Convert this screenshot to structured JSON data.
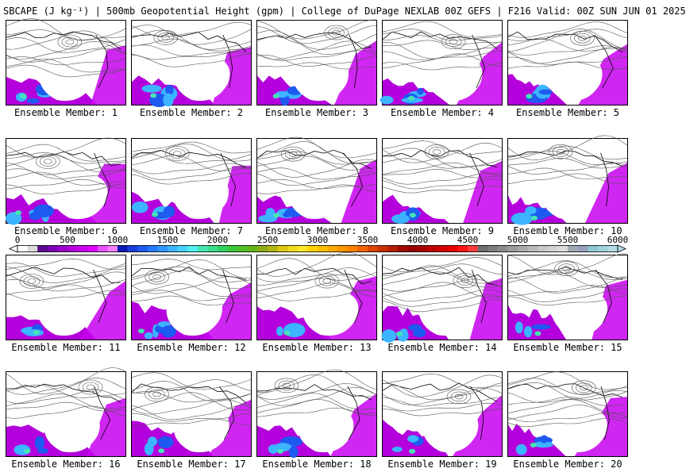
{
  "header": {
    "title": "SBCAPE (J kg⁻¹) | 500mb Geopotential Height (gpm) | College of DuPage NEXLAB 00Z GEFS | F216 Valid: 00Z SUN JUN 01 2025"
  },
  "panels": [
    {
      "label": "Ensemble Member: 1"
    },
    {
      "label": "Ensemble Member: 2"
    },
    {
      "label": "Ensemble Member: 3"
    },
    {
      "label": "Ensemble Member: 4"
    },
    {
      "label": "Ensemble Member: 5"
    },
    {
      "label": "Ensemble Member: 6"
    },
    {
      "label": "Ensemble Member: 7"
    },
    {
      "label": "Ensemble Member: 8"
    },
    {
      "label": "Ensemble Member: 9"
    },
    {
      "label": "Ensemble Member: 10"
    },
    {
      "label": "Ensemble Member: 11"
    },
    {
      "label": "Ensemble Member: 12"
    },
    {
      "label": "Ensemble Member: 13"
    },
    {
      "label": "Ensemble Member: 14"
    },
    {
      "label": "Ensemble Member: 15"
    },
    {
      "label": "Ensemble Member: 16"
    },
    {
      "label": "Ensemble Member: 17"
    },
    {
      "label": "Ensemble Member: 18"
    },
    {
      "label": "Ensemble Member: 19"
    },
    {
      "label": "Ensemble Member: 20"
    }
  ],
  "colorbar": {
    "ticks": [
      "0",
      "500",
      "1000",
      "1500",
      "2000",
      "2500",
      "3000",
      "3500",
      "4000",
      "4500",
      "5000",
      "5500",
      "6000"
    ],
    "colors": [
      "#ffffff",
      "#dcdcdc",
      "#5a0a8c",
      "#7a00b4",
      "#9a00c8",
      "#b400dc",
      "#c800f0",
      "#dc00ff",
      "#e650ff",
      "#f080ff",
      "#0a1ab4",
      "#1a3cdc",
      "#1e5af0",
      "#2878ff",
      "#3296ff",
      "#3cb4ff",
      "#46d2ff",
      "#50f0f0",
      "#46e6b4",
      "#3cdc8c",
      "#32d264",
      "#3cc83c",
      "#50be28",
      "#64b41e",
      "#8caa14",
      "#b4b414",
      "#dcc814",
      "#f0dc1e",
      "#ffe628",
      "#ffd200",
      "#ffbe00",
      "#ffaa00",
      "#ff9600",
      "#ff8200",
      "#f06400",
      "#dc4600",
      "#c83200",
      "#b41e00",
      "#a00a00",
      "#960000",
      "#aa0000",
      "#be0000",
      "#d20000",
      "#e60000",
      "#ff1414",
      "#ff3c3c",
      "#6e6e6e",
      "#7d7d7d",
      "#8c8c8c",
      "#9b9b9b",
      "#aaaaaa",
      "#b9b9b9",
      "#c8c8c8",
      "#d2d2d2",
      "#dcdcdc",
      "#a0aab4",
      "#96a0be",
      "#8cc8d2",
      "#a0d2dc",
      "#b4dce6"
    ]
  }
}
